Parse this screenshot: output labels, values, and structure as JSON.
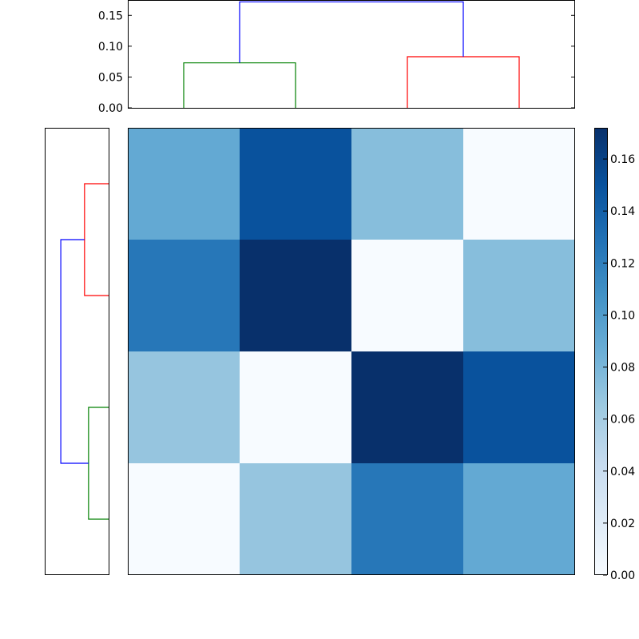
{
  "chart_data": [
    {
      "type": "line",
      "subtype": "dendrogram",
      "orientation": "top",
      "ylim": [
        0,
        0.175
      ],
      "yticks": [
        "0.00",
        "0.05",
        "0.10",
        "0.15"
      ],
      "leaf_order": [
        0,
        1,
        2,
        3
      ],
      "links": [
        {
          "color": "#008000",
          "x": [
            0,
            0,
            1,
            1
          ],
          "y": [
            0,
            0.073,
            0.073,
            0
          ]
        },
        {
          "color": "#ff0000",
          "x": [
            2,
            2,
            3,
            3
          ],
          "y": [
            0,
            0.083,
            0.083,
            0
          ]
        },
        {
          "color": "#0000ff",
          "x": [
            0.5,
            0.5,
            2.5,
            2.5
          ],
          "y": [
            0.073,
            0.172,
            0.172,
            0.083
          ]
        }
      ]
    },
    {
      "type": "line",
      "subtype": "dendrogram",
      "orientation": "left",
      "xlim": [
        0,
        0.175
      ],
      "leaf_order": [
        0,
        1,
        2,
        3
      ],
      "links": [
        {
          "color": "#008000",
          "y": [
            0,
            0,
            1,
            1
          ],
          "x": [
            0,
            0.055,
            0.055,
            0
          ]
        },
        {
          "color": "#ff0000",
          "y": [
            2,
            2,
            3,
            3
          ],
          "x": [
            0,
            0.066,
            0.066,
            0
          ]
        },
        {
          "color": "#0000ff",
          "y": [
            0.5,
            0.5,
            2.5,
            2.5
          ],
          "x": [
            0.055,
            0.131,
            0.131,
            0.066
          ]
        }
      ]
    },
    {
      "type": "heatmap",
      "colormap": "Blues",
      "vmin": 0,
      "vmax": 0.172,
      "values": [
        [
          0.09,
          0.15,
          0.074,
          0.0
        ],
        [
          0.125,
          0.172,
          0.0,
          0.074
        ],
        [
          0.068,
          0.0,
          0.172,
          0.15
        ],
        [
          0.0,
          0.068,
          0.125,
          0.09
        ]
      ],
      "colorbar": {
        "ticks": [
          0.0,
          0.02,
          0.04,
          0.06,
          0.08,
          0.1,
          0.12,
          0.14,
          0.16
        ],
        "tick_labels": [
          "0.00",
          "0.02",
          "0.04",
          "0.06",
          "0.08",
          "0.10",
          "0.12",
          "0.14",
          "0.16"
        ]
      }
    }
  ]
}
